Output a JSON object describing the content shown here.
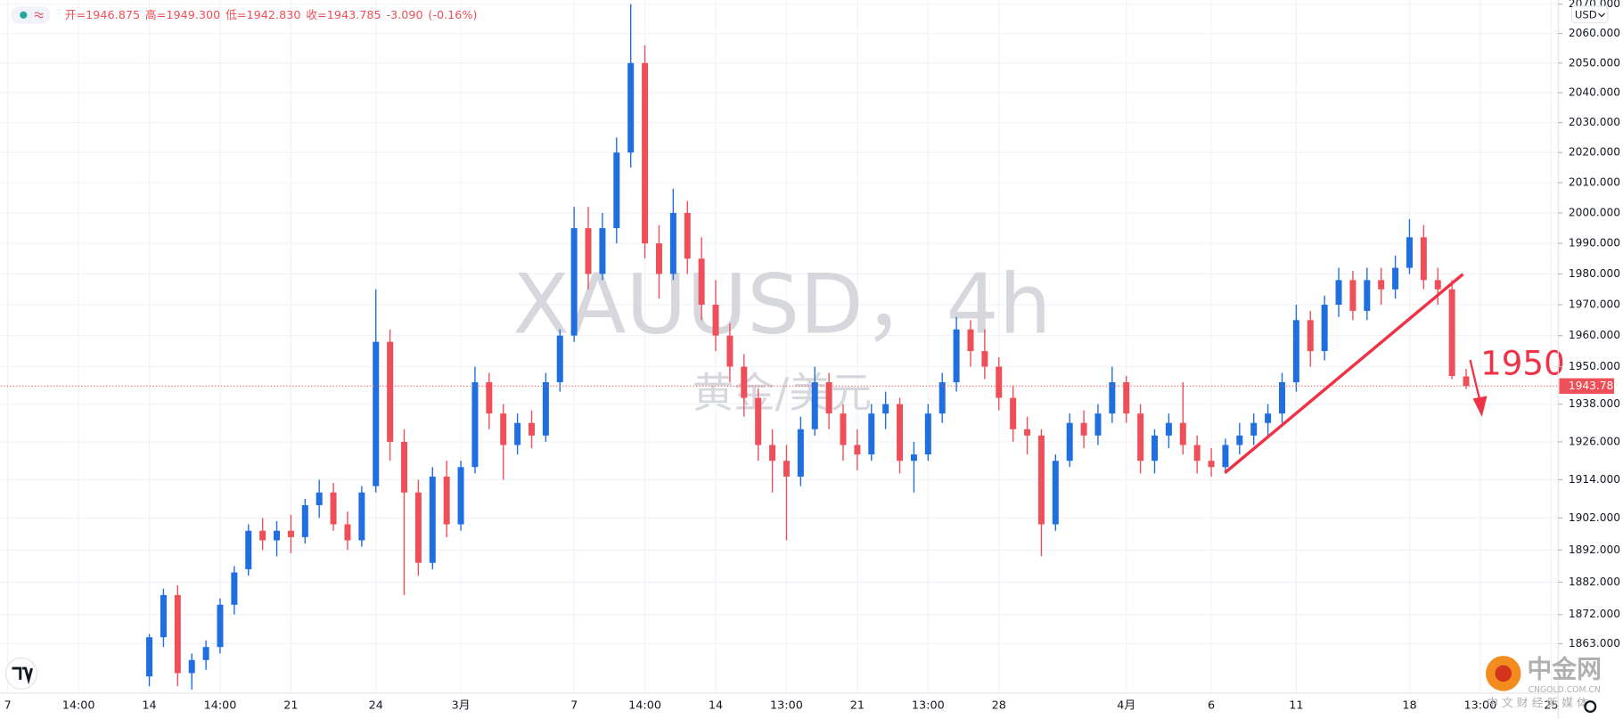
{
  "chart_data": {
    "type": "candlestick",
    "log_scale": true,
    "grid": true,
    "symbol": "XAUUSD，4h",
    "subtitle": "黄金/美元",
    "currency": "USD",
    "legend_text": [
      "开=1946.875",
      "高=1949.300",
      "低=1942.830",
      "收=1943.785",
      "-3.090",
      "(-0.16%)"
    ],
    "annotation": "1950",
    "up_color": "#1f6fe0",
    "down_color": "#ef4f58",
    "last_price": 1943.785,
    "ylim": [
      1847.9,
      2071.4
    ],
    "yticks": [
      {
        "value": 2070,
        "label": "2070.000"
      },
      {
        "value": 2060,
        "label": "2060.000"
      },
      {
        "value": 2050,
        "label": "2050.000"
      },
      {
        "value": 2040,
        "label": "2040.000"
      },
      {
        "value": 2030,
        "label": "2030.000"
      },
      {
        "value": 2020,
        "label": "2020.000"
      },
      {
        "value": 2010,
        "label": "2010.000"
      },
      {
        "value": 2000,
        "label": "2000.000"
      },
      {
        "value": 1990,
        "label": "1990.000"
      },
      {
        "value": 1980,
        "label": "1980.000"
      },
      {
        "value": 1970,
        "label": "1970.000"
      },
      {
        "value": 1960,
        "label": "1960.000"
      },
      {
        "value": 1950,
        "label": "1950.000"
      },
      {
        "value": 1938,
        "label": "1938.000"
      },
      {
        "value": 1926,
        "label": "1926.000"
      },
      {
        "value": 1914,
        "label": "1914.000"
      },
      {
        "value": 1902,
        "label": "1902.000"
      },
      {
        "value": 1892,
        "label": "1892.000"
      },
      {
        "value": 1882,
        "label": "1882.000"
      },
      {
        "value": 1872,
        "label": "1872.000"
      },
      {
        "value": 1863,
        "label": "1863.000"
      }
    ],
    "categories": [
      "7",
      null,
      null,
      null,
      null,
      "14:00",
      null,
      null,
      null,
      null,
      "14",
      null,
      null,
      null,
      null,
      "14:00",
      null,
      null,
      null,
      null,
      "21",
      null,
      null,
      null,
      null,
      null,
      "24",
      null,
      null,
      null,
      null,
      null,
      "3月",
      null,
      null,
      null,
      null,
      null,
      null,
      null,
      "7",
      null,
      null,
      null,
      null,
      "14:00",
      null,
      null,
      null,
      null,
      "14",
      null,
      null,
      null,
      null,
      "13:00",
      null,
      null,
      null,
      null,
      "21",
      null,
      null,
      null,
      null,
      "13:00",
      null,
      null,
      null,
      null,
      "28",
      null,
      null,
      null,
      null,
      null,
      null,
      null,
      null,
      "4月",
      null,
      null,
      null,
      null,
      null,
      "6",
      null,
      null,
      null,
      null,
      null,
      "11",
      null,
      null,
      null,
      null,
      null,
      null,
      null,
      "18",
      null,
      null,
      null,
      null,
      "13:00",
      null,
      null,
      null,
      null,
      "25"
    ],
    "candles": [
      null,
      null,
      null,
      null,
      null,
      null,
      null,
      null,
      null,
      null,
      [
        1853,
        1866,
        1850,
        1865
      ],
      [
        1865,
        1880,
        1862,
        1878
      ],
      [
        1878,
        1881,
        1850,
        1854
      ],
      [
        1854,
        1860,
        1849,
        1858
      ],
      [
        1858,
        1864,
        1855,
        1862
      ],
      [
        1862,
        1877,
        1860,
        1875
      ],
      [
        1875,
        1887,
        1872,
        1885
      ],
      [
        1886,
        1900,
        1884,
        1898
      ],
      [
        1898,
        1902,
        1892,
        1895
      ],
      [
        1895,
        1901,
        1890,
        1898
      ],
      [
        1898,
        1903,
        1891,
        1896
      ],
      [
        1896,
        1908,
        1894,
        1906
      ],
      [
        1906,
        1914,
        1902,
        1910
      ],
      [
        1910,
        1913,
        1898,
        1900
      ],
      [
        1900,
        1904,
        1892,
        1895
      ],
      [
        1895,
        1912,
        1893,
        1910
      ],
      [
        1912,
        1975,
        1910,
        1958
      ],
      [
        1958,
        1962,
        1920,
        1926
      ],
      [
        1926,
        1930,
        1878,
        1910
      ],
      [
        1910,
        1914,
        1884,
        1888
      ],
      [
        1888,
        1918,
        1886,
        1915
      ],
      [
        1915,
        1920,
        1896,
        1900
      ],
      [
        1900,
        1920,
        1898,
        1918
      ],
      [
        1918,
        1950,
        1916,
        1945
      ],
      [
        1945,
        1948,
        1930,
        1935
      ],
      [
        1935,
        1938,
        1914,
        1925
      ],
      [
        1925,
        1935,
        1922,
        1932
      ],
      [
        1932,
        1936,
        1924,
        1928
      ],
      [
        1928,
        1948,
        1926,
        1945
      ],
      [
        1945,
        1962,
        1942,
        1960
      ],
      [
        1960,
        2002,
        1958,
        1995
      ],
      [
        1995,
        2002,
        1975,
        1980
      ],
      [
        1980,
        2000,
        1978,
        1995
      ],
      [
        1995,
        2025,
        1990,
        2020
      ],
      [
        2020,
        2070,
        2015,
        2050
      ],
      [
        2050,
        2056,
        1985,
        1990
      ],
      [
        1990,
        1996,
        1972,
        1980
      ],
      [
        1980,
        2008,
        1978,
        2000
      ],
      [
        2000,
        2004,
        1980,
        1985
      ],
      [
        1985,
        1992,
        1965,
        1970
      ],
      [
        1970,
        1978,
        1955,
        1960
      ],
      [
        1960,
        1964,
        1945,
        1950
      ],
      [
        1950,
        1954,
        1934,
        1940
      ],
      [
        1940,
        1943,
        1920,
        1925
      ],
      [
        1925,
        1930,
        1910,
        1920
      ],
      [
        1920,
        1925,
        1895,
        1915
      ],
      [
        1915,
        1934,
        1912,
        1930
      ],
      [
        1930,
        1950,
        1928,
        1945
      ],
      [
        1945,
        1948,
        1930,
        1935
      ],
      [
        1935,
        1938,
        1920,
        1925
      ],
      [
        1925,
        1930,
        1917,
        1922
      ],
      [
        1922,
        1938,
        1920,
        1935
      ],
      [
        1935,
        1942,
        1930,
        1938
      ],
      [
        1938,
        1940,
        1916,
        1920
      ],
      [
        1920,
        1926,
        1910,
        1922
      ],
      [
        1922,
        1938,
        1920,
        1935
      ],
      [
        1935,
        1948,
        1932,
        1945
      ],
      [
        1945,
        1966,
        1942,
        1962
      ],
      [
        1962,
        1965,
        1950,
        1955
      ],
      [
        1955,
        1962,
        1946,
        1950
      ],
      [
        1950,
        1953,
        1936,
        1940
      ],
      [
        1940,
        1944,
        1926,
        1930
      ],
      [
        1930,
        1934,
        1922,
        1928
      ],
      [
        1928,
        1930,
        1890,
        1900
      ],
      [
        1900,
        1922,
        1898,
        1920
      ],
      [
        1920,
        1935,
        1918,
        1932
      ],
      [
        1932,
        1936,
        1924,
        1928
      ],
      [
        1928,
        1938,
        1925,
        1935
      ],
      [
        1935,
        1950,
        1932,
        1945
      ],
      [
        1945,
        1947,
        1932,
        1935
      ],
      [
        1935,
        1938,
        1916,
        1920
      ],
      [
        1920,
        1930,
        1916,
        1928
      ],
      [
        1928,
        1935,
        1924,
        1932
      ],
      [
        1932,
        1945,
        1922,
        1925
      ],
      [
        1925,
        1928,
        1916,
        1920
      ],
      [
        1920,
        1924,
        1915,
        1918
      ],
      [
        1918,
        1927,
        1916,
        1925
      ],
      [
        1925,
        1932,
        1922,
        1928
      ],
      [
        1928,
        1935,
        1925,
        1932
      ],
      [
        1932,
        1938,
        1928,
        1935
      ],
      [
        1935,
        1948,
        1932,
        1945
      ],
      [
        1945,
        1970,
        1942,
        1965
      ],
      [
        1965,
        1968,
        1950,
        1955
      ],
      [
        1955,
        1973,
        1952,
        1970
      ],
      [
        1970,
        1982,
        1966,
        1978
      ],
      [
        1978,
        1981,
        1965,
        1968
      ],
      [
        1968,
        1982,
        1965,
        1978
      ],
      [
        1978,
        1982,
        1970,
        1975
      ],
      [
        1975,
        1986,
        1972,
        1982
      ],
      [
        1982,
        1998,
        1980,
        1992
      ],
      [
        1992,
        1996,
        1975,
        1978
      ],
      [
        1978,
        1982,
        1970,
        1975
      ],
      [
        1975,
        1978,
        1946,
        1947
      ],
      [
        1946.875,
        1949.3,
        1942.83,
        1943.785
      ],
      null,
      null,
      null,
      null,
      null,
      null
    ]
  },
  "branding": {
    "logo": "中金网",
    "site": "CNGOLD.COM.CN",
    "tagline": "中 文 财 经 新 媒 体"
  }
}
